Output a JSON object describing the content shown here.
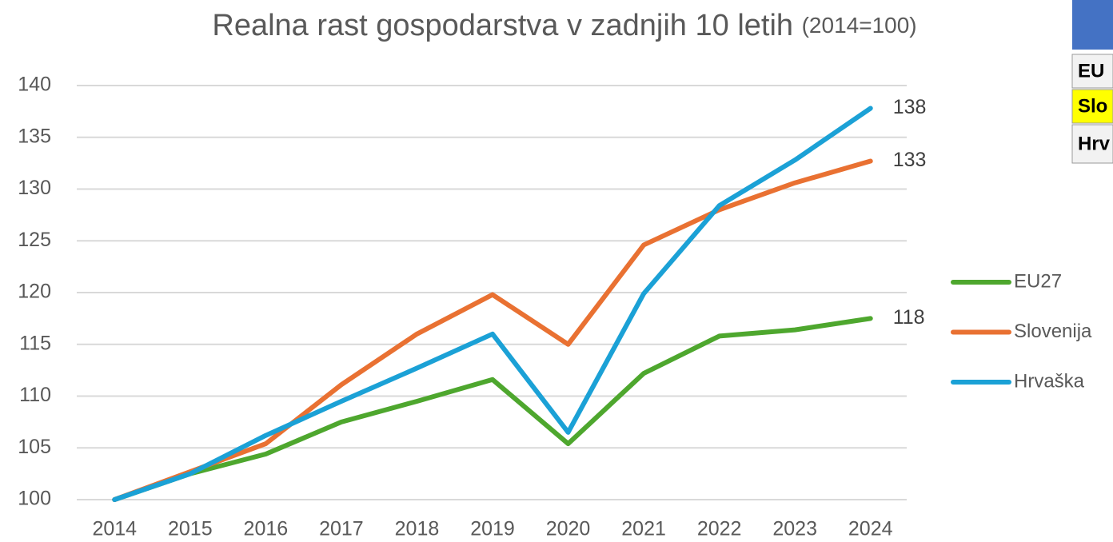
{
  "chart_data": {
    "type": "line",
    "title": "Realna rast gospodarstva v zadnjih 10 letih",
    "subtitle": "(2014=100)",
    "categories": [
      "2014",
      "2015",
      "2016",
      "2017",
      "2018",
      "2019",
      "2020",
      "2021",
      "2022",
      "2023",
      "2024"
    ],
    "series": [
      {
        "name": "EU27",
        "color": "#4ea72e",
        "values": [
          100,
          102.5,
          104.4,
          107.5,
          109.5,
          111.6,
          105.4,
          112.2,
          115.8,
          116.4,
          117.5
        ],
        "value_labels": [
          null,
          null,
          null,
          null,
          null,
          null,
          null,
          null,
          null,
          null,
          "118"
        ]
      },
      {
        "name": "Slovenija",
        "color": "#e97132",
        "values": [
          100,
          102.7,
          105.4,
          111.1,
          116,
          119.8,
          115,
          124.6,
          128,
          130.6,
          132.7
        ],
        "value_labels": [
          null,
          null,
          null,
          null,
          null,
          null,
          null,
          null,
          null,
          null,
          "133"
        ]
      },
      {
        "name": "Hrvaška",
        "color": "#1ba1d6",
        "values": [
          100,
          102.5,
          106.2,
          109.5,
          112.7,
          116,
          106.5,
          119.9,
          128.4,
          132.8,
          137.8
        ],
        "value_labels": [
          null,
          null,
          null,
          null,
          null,
          null,
          null,
          null,
          null,
          null,
          "138"
        ]
      }
    ],
    "ylim": [
      100,
      140
    ],
    "yticks": [
      100,
      105,
      110,
      115,
      120,
      125,
      130,
      135,
      140
    ],
    "grid": true,
    "legend": "right"
  },
  "table": {
    "rows": [
      "EU",
      "Slo",
      "Hrv"
    ]
  }
}
